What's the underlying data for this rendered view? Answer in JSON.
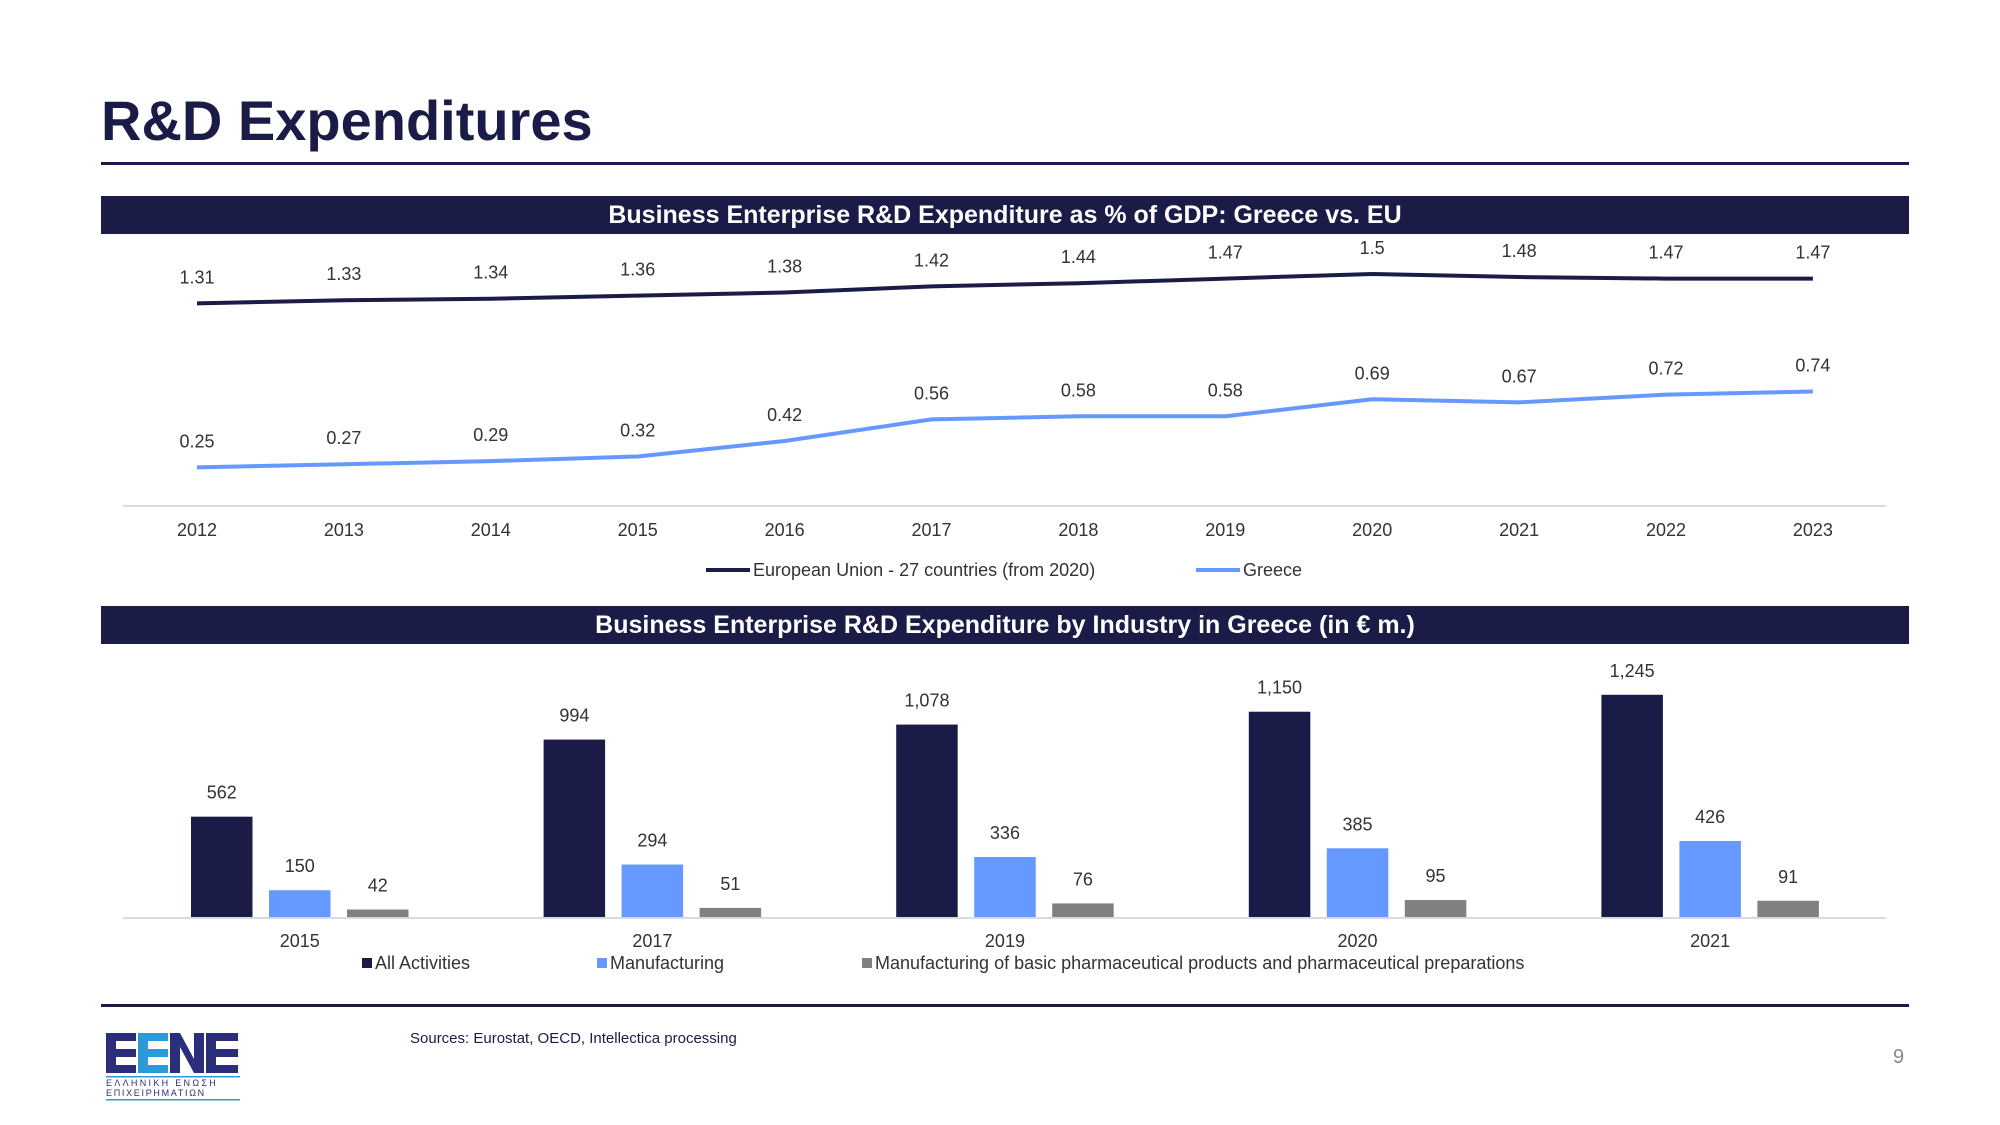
{
  "page": {
    "title": "R&D Expenditures",
    "sources": "Sources: Eurostat, OECD, Intellectica processing",
    "page_number": "9",
    "logo": {
      "text": "EENE",
      "subtitle_line1": "ΕΛΛΗΝΙΚΗ ΕΝΩΣΗ",
      "subtitle_line2": "ΕΠΙΧΕΙΡΗΜΑΤΙΩΝ"
    }
  },
  "colors": {
    "navy": "#1b1b47",
    "blue": "#6699ff",
    "gray": "#808080"
  },
  "chart_data": [
    {
      "type": "line",
      "title": "Business Enterprise R&D Expenditure as % of GDP: Greece vs. EU",
      "x": [
        "2012",
        "2013",
        "2014",
        "2015",
        "2016",
        "2017",
        "2018",
        "2019",
        "2020",
        "2021",
        "2022",
        "2023"
      ],
      "ylim": [
        0,
        1.6
      ],
      "grid": false,
      "legend_position": "bottom",
      "series": [
        {
          "name": "European Union - 27 countries (from 2020)",
          "color": "#1b1b47",
          "values": [
            1.31,
            1.33,
            1.34,
            1.36,
            1.38,
            1.42,
            1.44,
            1.47,
            1.5,
            1.48,
            1.47,
            1.47
          ]
        },
        {
          "name": "Greece",
          "color": "#6699ff",
          "values": [
            0.25,
            0.27,
            0.29,
            0.32,
            0.42,
            0.56,
            0.58,
            0.58,
            0.69,
            0.67,
            0.72,
            0.74
          ]
        }
      ]
    },
    {
      "type": "bar",
      "title": "Business Enterprise R&D Expenditure by Industry in Greece (in € m.)",
      "categories": [
        "2015",
        "2017",
        "2019",
        "2020",
        "2021"
      ],
      "ylim": [
        0,
        1300
      ],
      "legend_position": "bottom",
      "series": [
        {
          "name": "All Activities",
          "color": "#1b1b47",
          "values": [
            562,
            994,
            1078,
            1150,
            1245
          ],
          "labels": [
            "562",
            "994",
            "1,078",
            "1,150",
            "1,245"
          ]
        },
        {
          "name": "Manufacturing",
          "color": "#6699ff",
          "values": [
            150,
            294,
            336,
            385,
            426
          ],
          "labels": [
            "150",
            "294",
            "336",
            "385",
            "426"
          ]
        },
        {
          "name": "Manufacturing of basic pharmaceutical products and pharmaceutical preparations",
          "color": "#808080",
          "values": [
            42,
            51,
            76,
            95,
            91
          ],
          "labels": [
            "42",
            "51",
            "76",
            "95",
            "91"
          ]
        }
      ]
    }
  ]
}
